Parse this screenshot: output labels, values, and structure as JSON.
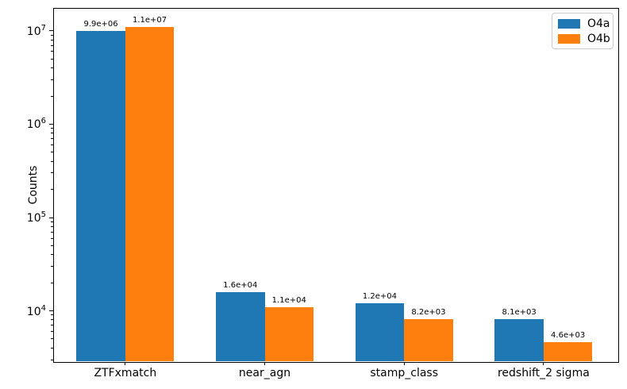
{
  "chart_data": {
    "type": "bar",
    "title": "",
    "xlabel": "",
    "ylabel": "Counts",
    "yscale": "log",
    "grid": false,
    "legend_position": "upper right",
    "categories": [
      "ZTFxmatch",
      "near_agn",
      "stamp_class",
      "redshift_2 sigma"
    ],
    "series": [
      {
        "name": "O4a",
        "color": "#1f77b4",
        "values": [
          9900000,
          16000,
          12000,
          8100
        ],
        "bar_labels": [
          "9.9e+06",
          "1.6e+04",
          "1.2e+04",
          "8.1e+03"
        ]
      },
      {
        "name": "O4b",
        "color": "#ff7f0e",
        "values": [
          11000000,
          11000,
          8200,
          4600
        ],
        "bar_labels": [
          "1.1e+07",
          "1.1e+04",
          "8.2e+03",
          "4.6e+03"
        ]
      }
    ],
    "y_major_tick_exponents": [
      4,
      5,
      6,
      7
    ],
    "ylim": [
      2888,
      17600000
    ]
  }
}
